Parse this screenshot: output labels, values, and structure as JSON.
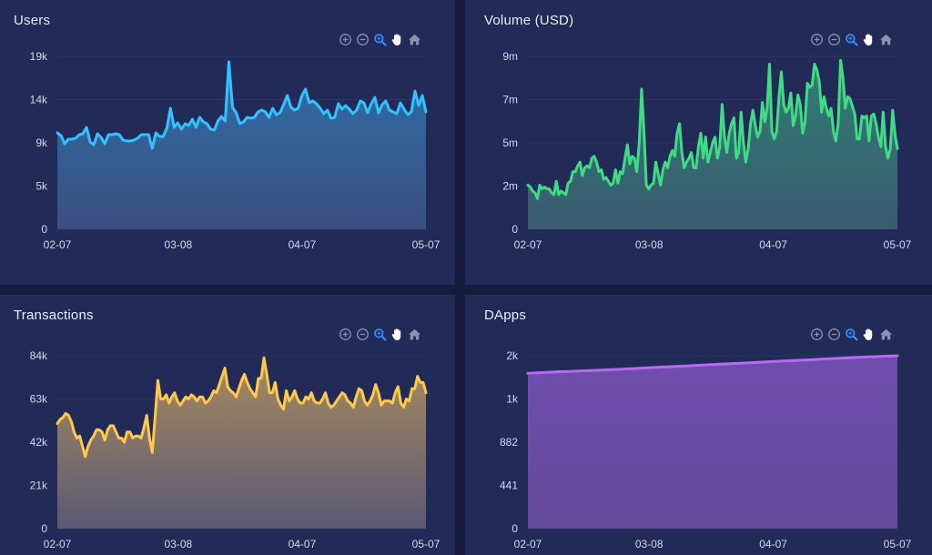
{
  "colors": {
    "page_bg": "#151b3a",
    "panel_bg": "#222a58",
    "grid": "#2e3768",
    "axis_text": "#d5d9ea",
    "tool_icon": "#8b92b4",
    "tool_active": "#2f8cff",
    "tool_pan": "#ffffff"
  },
  "toolbar": {
    "tools": [
      {
        "name": "zoom-in-icon",
        "state": "normal"
      },
      {
        "name": "zoom-out-icon",
        "state": "normal"
      },
      {
        "name": "selection-zoom-icon",
        "state": "active"
      },
      {
        "name": "pan-hand-icon",
        "state": "highlight"
      },
      {
        "name": "reset-home-icon",
        "state": "normal"
      }
    ]
  },
  "chart_data": [
    {
      "type": "area",
      "title": "Users",
      "color": "#33c2ff",
      "fill_top": "#2f6ea7",
      "fill_bottom": "#3a4f7f",
      "x_ticks": [
        "02-07",
        "03-08",
        "04-07",
        "05-07"
      ],
      "y_ticks": [
        "0",
        "5k",
        "9k",
        "14k",
        "19k"
      ],
      "ylim": [
        0,
        19
      ],
      "values": [
        10.6,
        10.3,
        9.4,
        9.9,
        9.9,
        10.0,
        10.4,
        10.5,
        11.2,
        9.6,
        9.3,
        10.5,
        10.1,
        9.4,
        10.4,
        10.4,
        10.5,
        10.4,
        9.8,
        9.7,
        9.7,
        9.8,
        10.0,
        10.4,
        10.4,
        10.4,
        8.9,
        10.6,
        10.2,
        10.2,
        11.1,
        13.3,
        11.2,
        11.7,
        11.0,
        11.6,
        11.4,
        12.1,
        11.2,
        12.3,
        11.8,
        11.6,
        11.0,
        10.9,
        11.9,
        12.4,
        11.9,
        18.4,
        13.4,
        12.8,
        11.6,
        11.8,
        12.3,
        12.2,
        12.3,
        12.9,
        13.1,
        12.9,
        12.3,
        13.3,
        12.6,
        12.8,
        13.7,
        14.7,
        13.4,
        13.1,
        13.3,
        14.7,
        15.4,
        13.9,
        14.1,
        13.8,
        13.3,
        12.7,
        13.1,
        12.2,
        12.3,
        13.8,
        13.2,
        13.6,
        13.2,
        12.7,
        13.1,
        14.1,
        13.9,
        12.8,
        13.8,
        14.5,
        12.8,
        13.7,
        14.1,
        13.1,
        12.9,
        12.7,
        13.9,
        13.2,
        12.6,
        12.9,
        15.2,
        13.6,
        14.7,
        12.9
      ]
    },
    {
      "type": "area",
      "title": "Volume (USD)",
      "color": "#3fdc84",
      "fill_top": "#2f7f74",
      "fill_bottom": "#3a5a70",
      "x_ticks": [
        "02-07",
        "03-08",
        "04-07",
        "05-07"
      ],
      "y_ticks": [
        "0",
        "2m",
        "5m",
        "7m",
        "9m"
      ],
      "ylim": [
        0,
        9
      ],
      "values": [
        2.3,
        2.2,
        2.0,
        1.9,
        1.6,
        2.3,
        2.1,
        2.2,
        2.1,
        2.1,
        1.9,
        1.8,
        2.5,
        1.8,
        2.0,
        1.9,
        1.8,
        2.4,
        2.5,
        3.0,
        3.0,
        3.3,
        3.5,
        2.8,
        3.2,
        3.3,
        3.2,
        3.7,
        3.8,
        3.5,
        3.0,
        3.1,
        2.6,
        2.7,
        2.5,
        2.3,
        2.4,
        3.1,
        2.4,
        3.0,
        2.9,
        3.7,
        4.4,
        3.4,
        3.8,
        3.7,
        3.0,
        4.5,
        7.3,
        5.1,
        2.3,
        2.1,
        2.3,
        2.4,
        3.5,
        2.9,
        2.3,
        3.1,
        3.5,
        3.2,
        3.8,
        4.1,
        3.8,
        5.0,
        5.5,
        4.0,
        3.2,
        3.5,
        3.7,
        4.0,
        3.2,
        3.2,
        4.3,
        5.0,
        3.7,
        4.8,
        3.5,
        4.0,
        4.5,
        4.8,
        3.7,
        4.3,
        6.5,
        4.8,
        4.0,
        5.0,
        5.5,
        5.8,
        3.7,
        4.0,
        6.1,
        4.5,
        3.5,
        4.2,
        5.5,
        6.2,
        5.4,
        4.8,
        5.1,
        6.6,
        5.6,
        6.3,
        8.6,
        5.1,
        4.7,
        5.1,
        6.9,
        8.2,
        6.5,
        6.1,
        6.3,
        7.1,
        5.4,
        5.9,
        7.0,
        6.5,
        5.0,
        5.6,
        7.6,
        7.4,
        7.5,
        8.6,
        8.3,
        7.7,
        6.1,
        6.9,
        6.3,
        5.9,
        6.3,
        5.1,
        4.6,
        5.5,
        8.8,
        7.9,
        6.3,
        6.9,
        6.8,
        6.4,
        6.0,
        4.7,
        4.7,
        5.9,
        5.8,
        5.9,
        4.6,
        5.9,
        6.0,
        5.5,
        4.8,
        4.3,
        6.1,
        4.3,
        3.7,
        4.2,
        6.2,
        4.9,
        4.2
      ]
    },
    {
      "type": "area",
      "title": "Transactions",
      "color": "#ffc94a",
      "fill_top": "#a88a5e",
      "fill_bottom": "#5a5974",
      "x_ticks": [
        "02-07",
        "03-08",
        "04-07",
        "05-07"
      ],
      "y_ticks": [
        "0",
        "21k",
        "42k",
        "63k",
        "84k"
      ],
      "ylim": [
        0,
        84
      ],
      "values": [
        51,
        53,
        54,
        56,
        55,
        52,
        47,
        44,
        45,
        40,
        35,
        40,
        43,
        45,
        48,
        48,
        47,
        43,
        48,
        50,
        50,
        47,
        44,
        44,
        42,
        47,
        47,
        44,
        45,
        45,
        44,
        49,
        55,
        44,
        37,
        54,
        72,
        63,
        63,
        65,
        61,
        64,
        66,
        62,
        60,
        62,
        64,
        63,
        65,
        64,
        62,
        64,
        64,
        61,
        62,
        64,
        67,
        66,
        70,
        74,
        78,
        69,
        67,
        66,
        64,
        68,
        72,
        75,
        71,
        68,
        66,
        64,
        73,
        73,
        83,
        75,
        66,
        66,
        71,
        63,
        60,
        58,
        67,
        62,
        64,
        67,
        63,
        61,
        61,
        64,
        63,
        66,
        62,
        61,
        61,
        63,
        66,
        61,
        59,
        60,
        62,
        64,
        66,
        65,
        62,
        61,
        59,
        64,
        68,
        67,
        62,
        60,
        62,
        65,
        70,
        66,
        60,
        62,
        62,
        62,
        61,
        66,
        69,
        61,
        59,
        63,
        62,
        68,
        68,
        74,
        71,
        71,
        66
      ]
    },
    {
      "type": "area",
      "title": "DApps",
      "color": "#b46df2",
      "fill_top": "#6f4dae",
      "fill_bottom": "#644a9a",
      "x_ticks": [
        "02-07",
        "03-08",
        "04-07",
        "05-07"
      ],
      "y_ticks": [
        "0",
        "441",
        "882",
        "1k",
        "2k"
      ],
      "ylim": [
        0,
        1764
      ],
      "values": [
        1585,
        1592,
        1600,
        1605,
        1612,
        1618,
        1625,
        1632,
        1640,
        1648,
        1655,
        1662,
        1670,
        1678,
        1685,
        1692,
        1700,
        1708,
        1715,
        1722,
        1730,
        1738,
        1745,
        1752,
        1758,
        1764
      ]
    }
  ]
}
